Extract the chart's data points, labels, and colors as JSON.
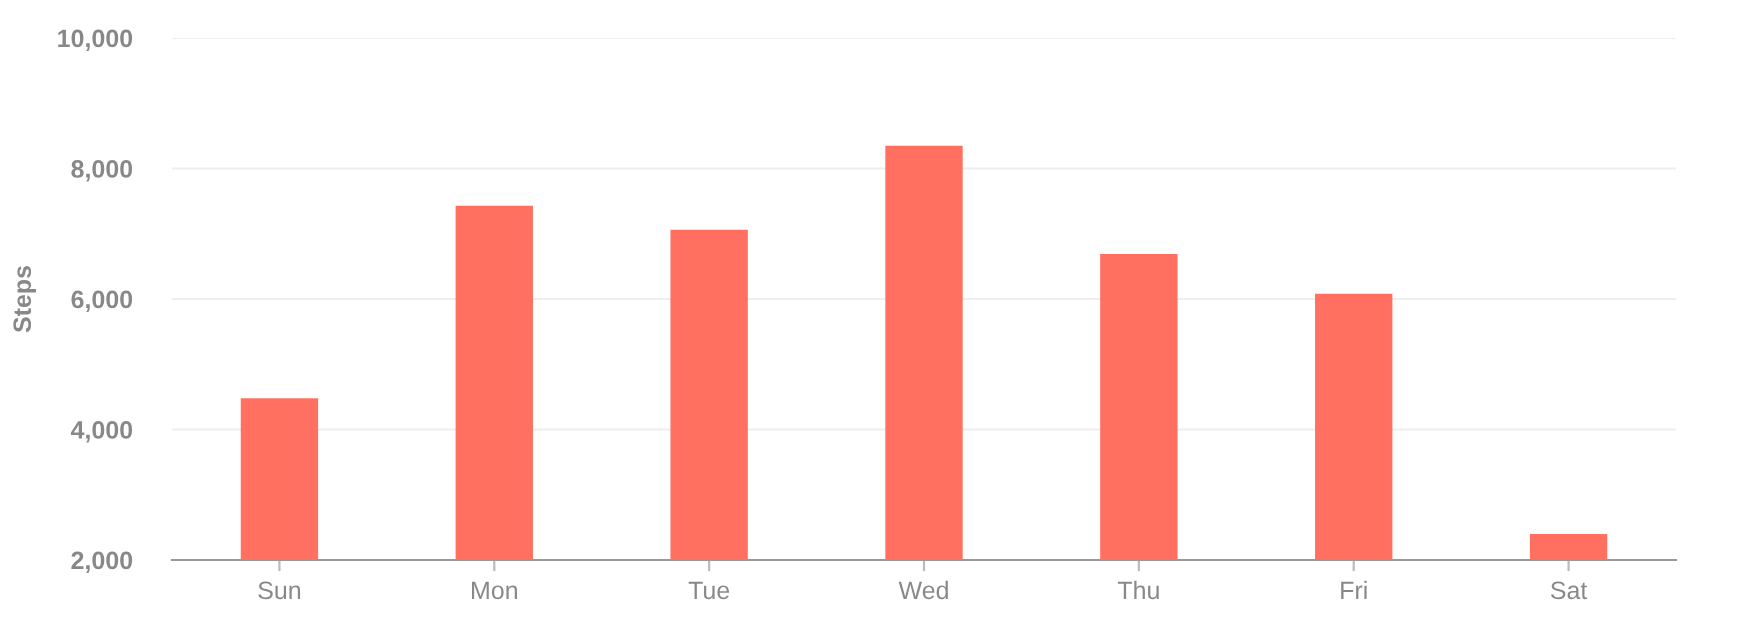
{
  "chart_data": {
    "type": "bar",
    "ylabel": "Steps",
    "categories": [
      "Sun",
      "Mon",
      "Tue",
      "Wed",
      "Thu",
      "Fri",
      "Sat"
    ],
    "values": [
      4480,
      7430,
      7060,
      8350,
      6690,
      6080,
      2400
    ],
    "color": "#ff7060",
    "ylim": [
      2000,
      10000
    ],
    "yticks": [
      {
        "value": 2000,
        "label": "2,000"
      },
      {
        "value": 4000,
        "label": "4,000"
      },
      {
        "value": 6000,
        "label": "6,000"
      },
      {
        "value": 8000,
        "label": "8,000"
      },
      {
        "value": 10000,
        "label": "10,000"
      }
    ],
    "grid": "y"
  }
}
